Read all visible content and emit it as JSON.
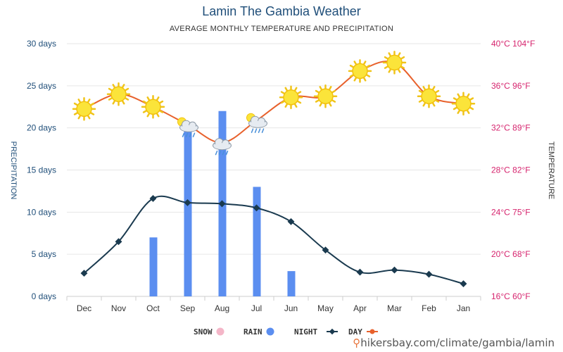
{
  "chart_data": {
    "type": "line",
    "title": "Lamin The Gambia Weather",
    "subtitle": "AVERAGE MONTHLY TEMPERATURE AND PRECIPITATION",
    "categories": [
      "Jan",
      "Feb",
      "Mar",
      "Apr",
      "May",
      "Jun",
      "Jul",
      "Aug",
      "Sep",
      "Oct",
      "Nov",
      "Dec"
    ],
    "left_axis": {
      "label": "PRECIPITATION",
      "range": [
        0,
        30
      ],
      "ticks": [
        "0 days",
        "5 days",
        "10 days",
        "15 days",
        "20 days",
        "25 days",
        "30 days"
      ]
    },
    "right_axis": {
      "label": "TEMPERATURE",
      "range": [
        16,
        40
      ],
      "ticks": [
        "16°C 60°F",
        "20°C 68°F",
        "24°C 75°F",
        "28°C 82°F",
        "32°C 89°F",
        "36°C 96°F",
        "40°C 104°F"
      ]
    },
    "series": [
      {
        "name": "DAY",
        "axis": "temperature",
        "color": "#e8612c",
        "values": [
          34.3,
          35.0,
          38.2,
          37.4,
          35.0,
          34.9,
          32.7,
          30.6,
          32.3,
          34.0,
          35.2,
          33.8
        ]
      },
      {
        "name": "NIGHT",
        "axis": "temperature",
        "color": "#1a3a4f",
        "values": [
          17.2,
          18.1,
          18.5,
          18.3,
          20.4,
          23.1,
          24.4,
          24.8,
          24.9,
          25.3,
          21.2,
          18.2
        ]
      },
      {
        "name": "RAIN",
        "axis": "precipitation",
        "color": "#5b8ef0",
        "values": [
          0,
          0,
          0,
          0,
          0,
          3,
          13,
          22,
          20.5,
          7,
          0,
          0
        ]
      },
      {
        "name": "SNOW",
        "axis": "precipitation",
        "color": "#f4b6c8",
        "values": [
          0,
          0,
          0,
          0,
          0,
          0,
          0,
          0,
          0,
          0,
          0,
          0
        ]
      }
    ],
    "day_icons": [
      "sun-icon",
      "sun-icon",
      "sun-icon",
      "sun-icon",
      "sun-icon",
      "sun-icon",
      "cloud-sun-rain-icon",
      "cloud-rain-icon",
      "cloud-sun-rain-icon",
      "sun-icon",
      "sun-icon",
      "sun-icon"
    ],
    "legend": [
      "DAY",
      "NIGHT",
      "RAIN",
      "SNOW"
    ],
    "legend_position": "bottom",
    "grid": true
  },
  "source_url": "hikersbay.com/climate/gambia/lamin"
}
